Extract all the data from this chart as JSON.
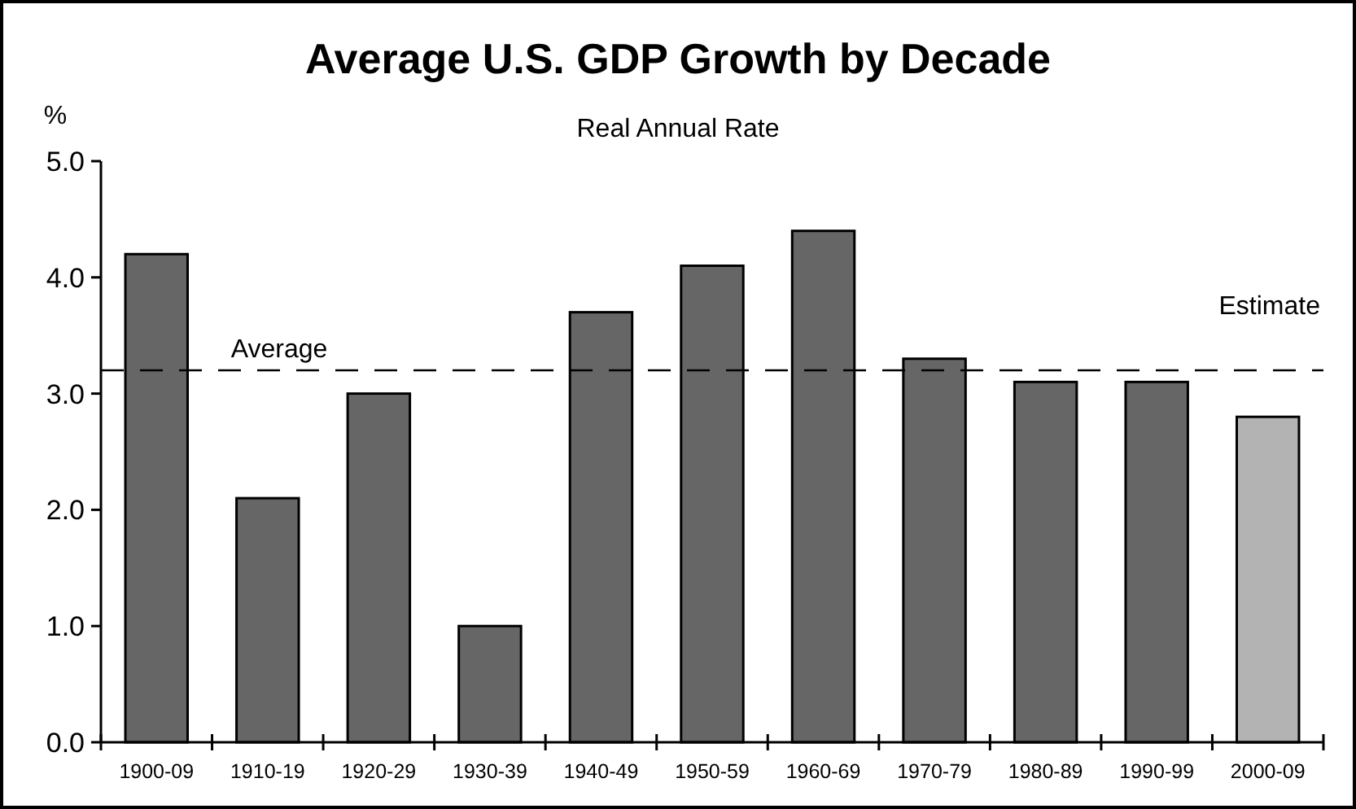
{
  "chart_data": {
    "type": "bar",
    "title": "Average U.S. GDP Growth by Decade",
    "subtitle": "Real Annual Rate",
    "ylabel": "%",
    "categories": [
      "1900-09",
      "1910-19",
      "1920-29",
      "1930-39",
      "1940-49",
      "1950-59",
      "1960-69",
      "1970-79",
      "1980-89",
      "1990-99",
      "2000-09"
    ],
    "values": [
      4.2,
      2.1,
      3.0,
      1.0,
      3.7,
      4.1,
      4.4,
      3.3,
      3.1,
      3.1,
      2.8
    ],
    "colors": [
      "#666666",
      "#666666",
      "#666666",
      "#666666",
      "#666666",
      "#666666",
      "#666666",
      "#666666",
      "#666666",
      "#666666",
      "#b3b3b3"
    ],
    "ylim": [
      0,
      5
    ],
    "yticks": [
      {
        "value": 0,
        "label": "0.0"
      },
      {
        "value": 1,
        "label": "1.0"
      },
      {
        "value": 2,
        "label": "2.0"
      },
      {
        "value": 3,
        "label": "3.0"
      },
      {
        "value": 4,
        "label": "4.0"
      },
      {
        "value": 5,
        "label": "5.0"
      }
    ],
    "ref_lines": [
      {
        "axis": "y",
        "value": 3.2,
        "label": "Average",
        "line_style": "dashed",
        "color": "#000000"
      }
    ],
    "annotations": [
      "Estimate"
    ],
    "grid": false
  }
}
